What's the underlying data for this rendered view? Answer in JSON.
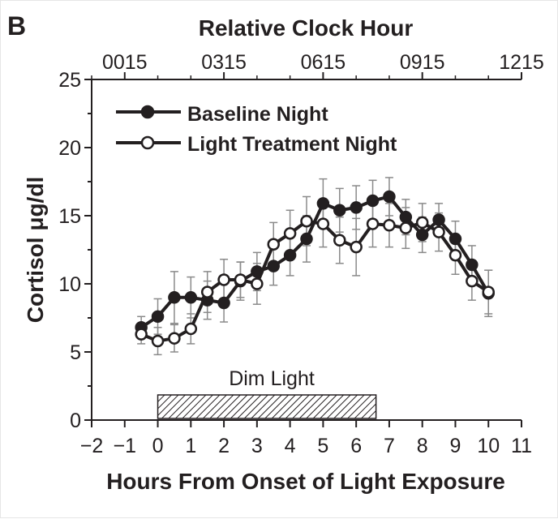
{
  "panel_label": "B",
  "chart_data": {
    "type": "line",
    "title": "",
    "top_axis": {
      "label": "Relative Clock Hour",
      "ticks": [
        "0015",
        "0315",
        "0615",
        "0915",
        "1215"
      ]
    },
    "xlabel": "Hours From Onset of Light Exposure",
    "ylabel": "Cortisol μg/dl",
    "xlim": [
      -2,
      11
    ],
    "ylim": [
      0,
      25
    ],
    "x_ticks": [
      -2,
      -1,
      0,
      1,
      2,
      3,
      4,
      5,
      6,
      7,
      8,
      9,
      10,
      11
    ],
    "x_tick_labels": [
      "−2",
      "−1",
      "0",
      "1",
      "2",
      "3",
      "4",
      "5",
      "6",
      "7",
      "8",
      "9",
      "10",
      "11"
    ],
    "y_ticks": [
      0,
      5,
      10,
      15,
      20,
      25
    ],
    "y_tick_labels": [
      "0",
      "5",
      "10",
      "15",
      "20",
      "25"
    ],
    "grid": false,
    "legend_position": "top-left",
    "x": [
      -0.5,
      0,
      0.5,
      1,
      1.5,
      2,
      2.5,
      3,
      3.5,
      4,
      4.5,
      5,
      5.5,
      6,
      6.5,
      7,
      7.5,
      8,
      8.5,
      9,
      9.5,
      10
    ],
    "series": [
      {
        "name": "Baseline Night",
        "marker": "filled",
        "values": [
          6.8,
          7.6,
          9.0,
          9.0,
          8.8,
          8.6,
          10.2,
          10.9,
          11.3,
          12.1,
          13.3,
          15.9,
          15.4,
          15.6,
          16.1,
          16.4,
          14.9,
          13.6,
          14.7,
          13.3,
          11.4,
          9.3
        ],
        "error": [
          0.8,
          1.3,
          1.9,
          1.5,
          1.4,
          1.4,
          1.4,
          1.4,
          1.4,
          1.5,
          1.7,
          1.8,
          1.6,
          1.6,
          1.5,
          1.4,
          1.3,
          1.3,
          1.2,
          1.3,
          1.4,
          1.7
        ]
      },
      {
        "name": "Light Treatment Night",
        "marker": "open",
        "values": [
          6.3,
          5.8,
          6.0,
          6.7,
          9.4,
          10.3,
          10.3,
          10.0,
          12.9,
          13.7,
          14.6,
          14.4,
          13.2,
          12.7,
          14.4,
          14.3,
          14.1,
          14.5,
          13.8,
          12.1,
          10.2,
          9.4
        ],
        "error": [
          0.7,
          1.0,
          1.0,
          1.1,
          1.5,
          1.5,
          1.3,
          1.5,
          1.6,
          1.7,
          1.8,
          1.7,
          1.7,
          2.1,
          1.7,
          1.6,
          1.5,
          1.4,
          1.4,
          1.4,
          1.4,
          1.6
        ]
      }
    ],
    "annotation": {
      "label": "Dim Light",
      "x_range": [
        0,
        6.6
      ]
    }
  }
}
